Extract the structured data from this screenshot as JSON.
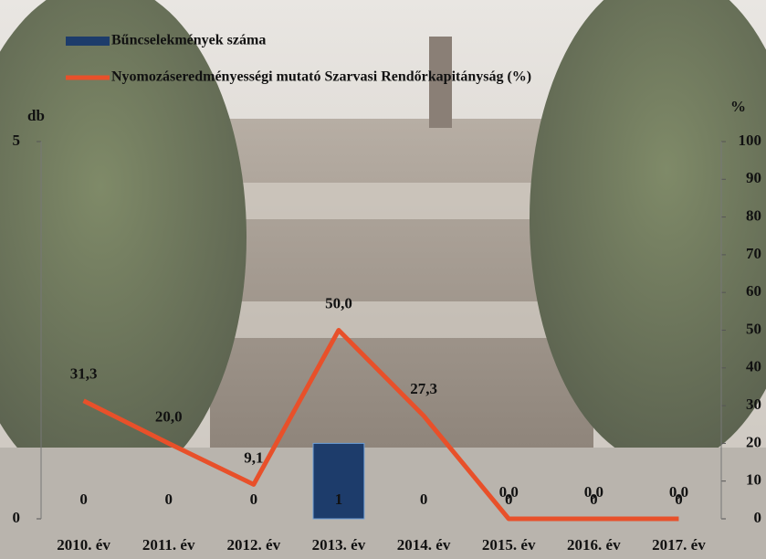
{
  "chart_data": {
    "type": "bar",
    "y_label": "db",
    "y2_label": "%",
    "categories": [
      "2010. év",
      "2011. év",
      "2012. év",
      "2013. év",
      "2014. év",
      "2015. év",
      "2016. év",
      "2017. év"
    ],
    "series": [
      {
        "name": "Bűncselekmények száma",
        "type": "bar",
        "color": "#1d3c6b",
        "values": [
          0,
          0,
          0,
          1,
          0,
          0,
          0,
          0
        ]
      },
      {
        "name": "Nyomozáseredményességi mutató Szarvasi Rendőrkapitányság (%)",
        "type": "line",
        "axis": "y2",
        "color": "#e8502a",
        "values": [
          31.3,
          20.0,
          9.1,
          50.0,
          27.3,
          0.0,
          0.0,
          0.0
        ],
        "value_labels": [
          "31,3",
          "20,0",
          "9,1",
          "50,0",
          "27,3",
          "0,0",
          "0,0",
          "0,0"
        ]
      }
    ],
    "ylim": [
      0,
      5
    ],
    "yticks": [
      0,
      5
    ],
    "y2lim": [
      0,
      100
    ],
    "y2ticks": [
      0,
      10,
      20,
      30,
      40,
      50,
      60,
      70,
      80,
      90,
      100
    ]
  }
}
